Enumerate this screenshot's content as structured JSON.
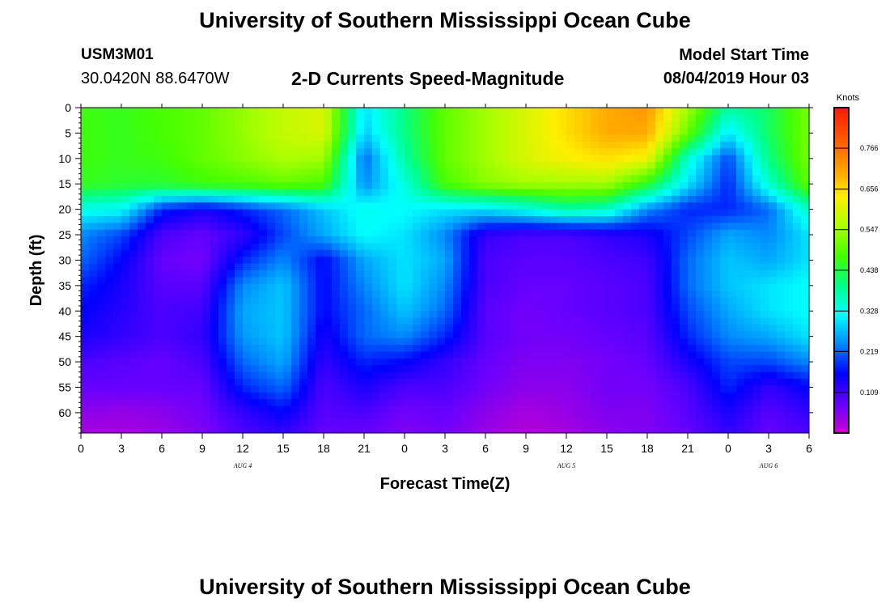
{
  "header": {
    "title": "University of Southern Mississippi Ocean Cube",
    "station_id": "USM3M01",
    "coordinates": "30.0420N 88.6470W",
    "subtitle": "2-D Currents Speed-Magnitude",
    "model_start_label": "Model Start Time",
    "model_start_value": "08/04/2019 Hour 03"
  },
  "footer": {
    "title": "University of Southern Mississippi Ocean Cube"
  },
  "chart_data": {
    "type": "heatmap",
    "xlabel": "Forecast Time(Z)",
    "ylabel": "Depth (ft)",
    "x_tick_labels": [
      "0",
      "3",
      "6",
      "9",
      "12",
      "15",
      "18",
      "21",
      "0",
      "3",
      "6",
      "9",
      "12",
      "15",
      "18",
      "21",
      "0",
      "3",
      "6"
    ],
    "date_labels": [
      {
        "label": "AUG 4",
        "tick_index": 4
      },
      {
        "label": "AUG 5",
        "tick_index": 12
      },
      {
        "label": "AUG 6",
        "tick_index": 17
      }
    ],
    "y_tick_labels": [
      "0",
      "5",
      "10",
      "15",
      "20",
      "25",
      "30",
      "35",
      "40",
      "45",
      "50",
      "55",
      "60"
    ],
    "y_tick_values": [
      0,
      5,
      10,
      15,
      20,
      25,
      30,
      35,
      40,
      45,
      50,
      55,
      60
    ],
    "ylim": [
      0,
      64
    ],
    "xlim_hours": [
      0,
      54
    ],
    "colorbar": {
      "unit": "Knots",
      "range": [
        0,
        0.875
      ],
      "tick_labels": [
        "0.766",
        "0.656",
        "0.547",
        "0.438",
        "0.328",
        "0.219",
        "0.109"
      ],
      "tick_values": [
        0.766,
        0.656,
        0.547,
        0.438,
        0.328,
        0.219,
        0.109
      ],
      "colormap": [
        "#cc00cc",
        "#6600ff",
        "#0000ff",
        "#0088ff",
        "#00ffff",
        "#00ff88",
        "#44ff00",
        "#aaff00",
        "#ffee00",
        "#ff9900",
        "#ff5500",
        "#ff1a00"
      ]
    },
    "depth_rows": [
      0,
      5,
      10,
      15,
      20,
      25,
      30,
      35,
      40,
      45,
      50,
      55,
      60,
      64
    ],
    "hours": [
      0,
      3,
      6,
      9,
      12,
      15,
      18,
      21,
      24,
      27,
      30,
      33,
      36,
      39,
      42,
      45,
      48,
      51,
      54
    ],
    "speed_knots": [
      [
        0.47,
        0.46,
        0.48,
        0.5,
        0.54,
        0.58,
        0.6,
        0.3,
        0.4,
        0.5,
        0.55,
        0.6,
        0.65,
        0.7,
        0.72,
        0.55,
        0.38,
        0.42,
        0.52
      ],
      [
        0.47,
        0.46,
        0.48,
        0.5,
        0.54,
        0.58,
        0.6,
        0.28,
        0.4,
        0.5,
        0.55,
        0.6,
        0.65,
        0.7,
        0.7,
        0.5,
        0.3,
        0.42,
        0.52
      ],
      [
        0.47,
        0.46,
        0.47,
        0.5,
        0.53,
        0.56,
        0.55,
        0.22,
        0.38,
        0.5,
        0.55,
        0.6,
        0.63,
        0.65,
        0.62,
        0.35,
        0.2,
        0.4,
        0.52
      ],
      [
        0.46,
        0.45,
        0.45,
        0.47,
        0.48,
        0.5,
        0.48,
        0.24,
        0.34,
        0.48,
        0.53,
        0.55,
        0.55,
        0.55,
        0.45,
        0.3,
        0.18,
        0.35,
        0.5
      ],
      [
        0.33,
        0.32,
        0.18,
        0.14,
        0.18,
        0.22,
        0.28,
        0.33,
        0.32,
        0.3,
        0.3,
        0.33,
        0.38,
        0.36,
        0.24,
        0.18,
        0.18,
        0.22,
        0.36
      ],
      [
        0.24,
        0.2,
        0.1,
        0.08,
        0.12,
        0.2,
        0.26,
        0.32,
        0.3,
        0.24,
        0.12,
        0.1,
        0.1,
        0.12,
        0.14,
        0.2,
        0.26,
        0.24,
        0.3
      ],
      [
        0.22,
        0.16,
        0.08,
        0.07,
        0.18,
        0.24,
        0.16,
        0.26,
        0.3,
        0.26,
        0.1,
        0.09,
        0.09,
        0.1,
        0.11,
        0.22,
        0.28,
        0.26,
        0.3
      ],
      [
        0.18,
        0.14,
        0.09,
        0.09,
        0.24,
        0.28,
        0.16,
        0.24,
        0.3,
        0.24,
        0.1,
        0.08,
        0.08,
        0.09,
        0.1,
        0.22,
        0.28,
        0.3,
        0.32
      ],
      [
        0.16,
        0.13,
        0.1,
        0.11,
        0.26,
        0.28,
        0.16,
        0.22,
        0.28,
        0.22,
        0.09,
        0.07,
        0.08,
        0.09,
        0.1,
        0.2,
        0.26,
        0.3,
        0.32
      ],
      [
        0.14,
        0.12,
        0.1,
        0.12,
        0.25,
        0.28,
        0.14,
        0.22,
        0.24,
        0.18,
        0.09,
        0.07,
        0.07,
        0.08,
        0.09,
        0.18,
        0.24,
        0.26,
        0.3
      ],
      [
        0.1,
        0.09,
        0.08,
        0.1,
        0.22,
        0.26,
        0.12,
        0.18,
        0.16,
        0.12,
        0.08,
        0.06,
        0.06,
        0.07,
        0.08,
        0.14,
        0.2,
        0.2,
        0.24
      ],
      [
        0.08,
        0.08,
        0.08,
        0.08,
        0.18,
        0.22,
        0.1,
        0.14,
        0.1,
        0.1,
        0.07,
        0.05,
        0.05,
        0.07,
        0.07,
        0.1,
        0.18,
        0.12,
        0.16
      ],
      [
        0.05,
        0.04,
        0.05,
        0.07,
        0.12,
        0.16,
        0.09,
        0.1,
        0.07,
        0.08,
        0.05,
        0.03,
        0.04,
        0.06,
        0.06,
        0.09,
        0.14,
        0.09,
        0.12
      ],
      [
        0.03,
        0.03,
        0.04,
        0.06,
        0.1,
        0.12,
        0.08,
        0.08,
        0.06,
        0.07,
        0.04,
        0.02,
        0.03,
        0.05,
        0.06,
        0.08,
        0.12,
        0.08,
        0.1
      ]
    ]
  }
}
